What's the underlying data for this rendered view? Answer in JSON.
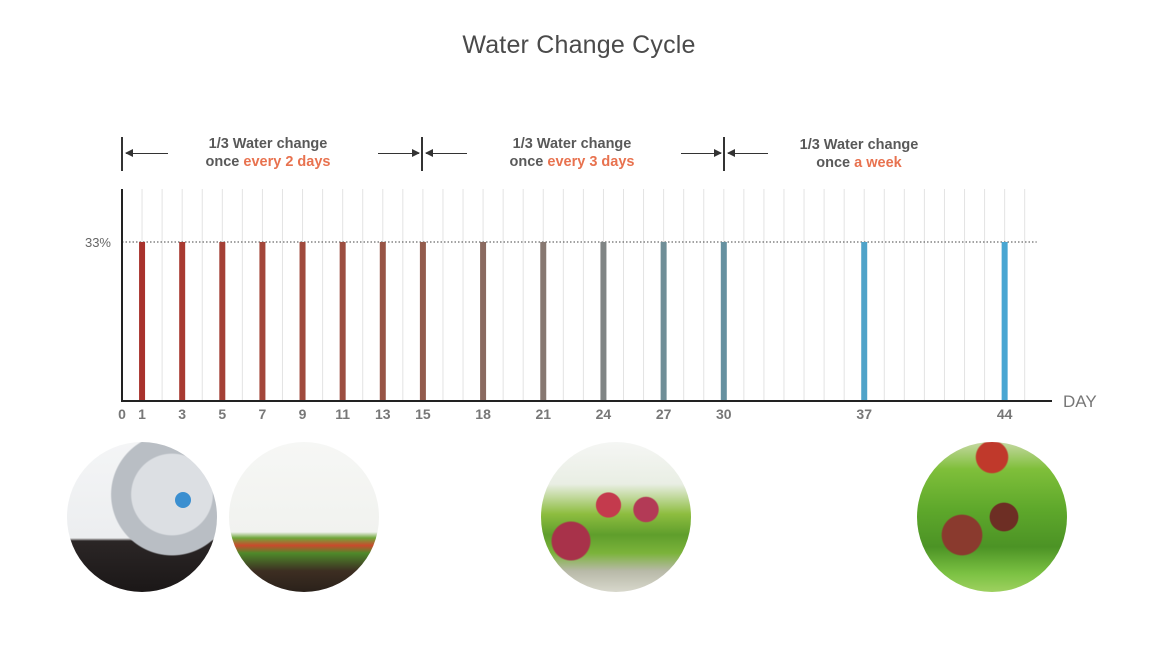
{
  "title": "Water Change Cycle",
  "phases": [
    {
      "line1": "1/3 Water change",
      "prefix": "once",
      "accent": "every 2 days"
    },
    {
      "line1": "1/3 Water change",
      "prefix": "once",
      "accent": "every 3 days"
    },
    {
      "line1": "1/3 Water change",
      "prefix": "once",
      "accent": "a week"
    }
  ],
  "colors": {
    "accent": "#e8724f",
    "axis": "#222222"
  },
  "chart_data": {
    "type": "bar",
    "title": "Water Change Cycle",
    "xlabel": "DAY",
    "ylabel": "",
    "x_range": [
      0,
      45
    ],
    "y_range": [
      0,
      44
    ],
    "reference_line": {
      "value": 33,
      "label": "33%"
    },
    "x_tick_labels": [
      "0",
      "1",
      "3",
      "5",
      "7",
      "9",
      "11",
      "13",
      "15",
      "18",
      "21",
      "24",
      "27",
      "30",
      "37",
      "44"
    ],
    "days": [
      1,
      3,
      5,
      7,
      9,
      11,
      13,
      15,
      18,
      21,
      24,
      27,
      30,
      37,
      44
    ],
    "values": [
      33,
      33,
      33,
      33,
      33,
      33,
      33,
      33,
      33,
      33,
      33,
      33,
      33,
      33,
      33
    ],
    "bar_colors": [
      "#a8322c",
      "#a83a31",
      "#a44036",
      "#a3463a",
      "#a04a3d",
      "#9c4e41",
      "#985546",
      "#935c4d",
      "#8a6a60",
      "#877871",
      "#808585",
      "#6f8e97",
      "#6691a0",
      "#4fa3c9",
      "#49a6d2"
    ],
    "phase_boundaries": [
      0,
      15,
      30
    ],
    "grid": "vertical"
  },
  "photos": [
    "aquasoil-bag-photo",
    "new-planted-tank-photo",
    "growing-tank-photo",
    "mature-tank-photo"
  ]
}
